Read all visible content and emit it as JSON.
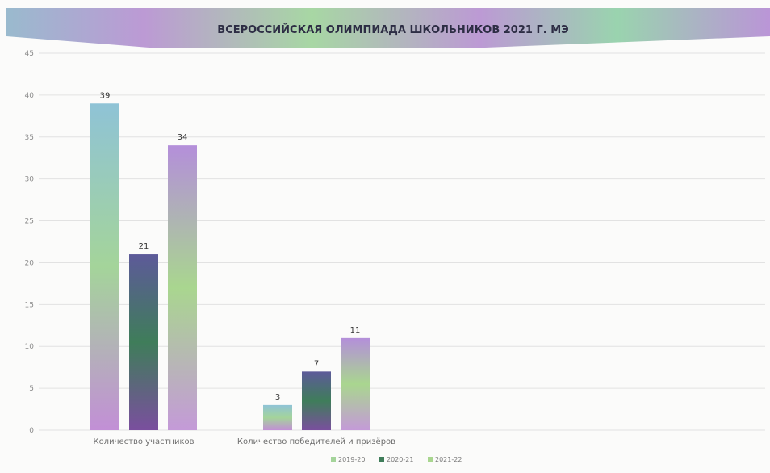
{
  "chart_data": {
    "type": "bar",
    "title": "ВСЕРОССИЙСКАЯ ОЛИМПИАДА ШКОЛЬНИКОВ 2021 Г.  МЭ",
    "xlabel": "",
    "ylabel": "",
    "categories": [
      "Количество участников",
      "Количество победителей и призёров"
    ],
    "series": [
      {
        "name": "2019-20",
        "values": [
          39,
          3
        ]
      },
      {
        "name": "2020-21",
        "values": [
          21,
          7
        ]
      },
      {
        "name": "2021-22",
        "values": [
          34,
          11
        ]
      }
    ],
    "ylim": [
      0,
      45
    ],
    "yticks": [
      0,
      5,
      10,
      15,
      20,
      25,
      30,
      35,
      40,
      45
    ],
    "grid": true,
    "legend_position": "bottom"
  },
  "colors": {
    "series": [
      [
        "#8fc3d6",
        "#a4d49a",
        "#c28fd6"
      ],
      [
        "#5d5a99",
        "#3f7d5a",
        "#7a4f9e"
      ],
      [
        "#b48fda",
        "#a9d68f",
        "#c49ad8"
      ]
    ],
    "grid": "#e2e2e2"
  }
}
